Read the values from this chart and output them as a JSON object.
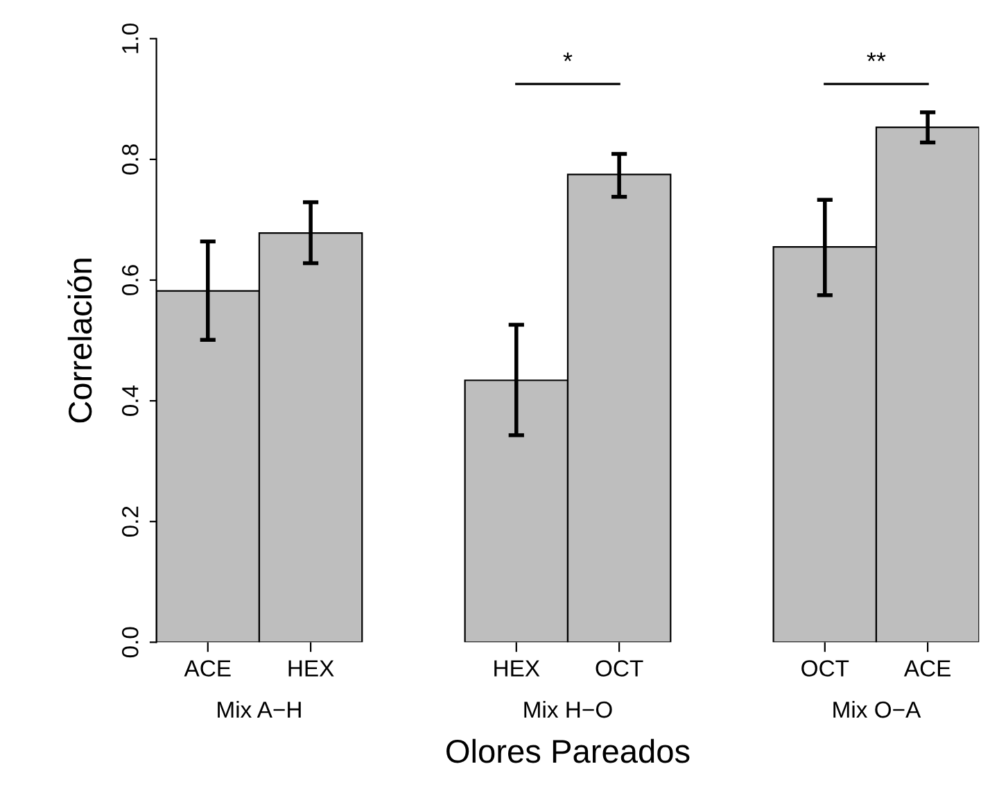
{
  "chart_data": {
    "type": "bar",
    "categories": [
      "ACE",
      "HEX",
      "HEX",
      "OCT",
      "OCT",
      "ACE"
    ],
    "values": [
      0.582,
      0.678,
      0.434,
      0.775,
      0.655,
      0.853
    ],
    "errors": [
      [
        0.501,
        0.664
      ],
      [
        0.628,
        0.729
      ],
      [
        0.343,
        0.526
      ],
      [
        0.738,
        0.809
      ],
      [
        0.575,
        0.733
      ],
      [
        0.828,
        0.878
      ]
    ],
    "color": "#bebebe",
    "ylabel": "Correlación",
    "xlabel": "Olores Pareados",
    "annotations": [
      "Mix A−H",
      "Mix H−O",
      "Mix O−A",
      "*",
      "**"
    ],
    "ylim": [
      0,
      1
    ],
    "yticks": [
      {
        "value": 0,
        "label": "0.0"
      },
      0.2,
      0.4,
      0.6,
      0.8,
      {
        "value": 1,
        "label": "1.0"
      }
    ],
    "grid": false
  }
}
